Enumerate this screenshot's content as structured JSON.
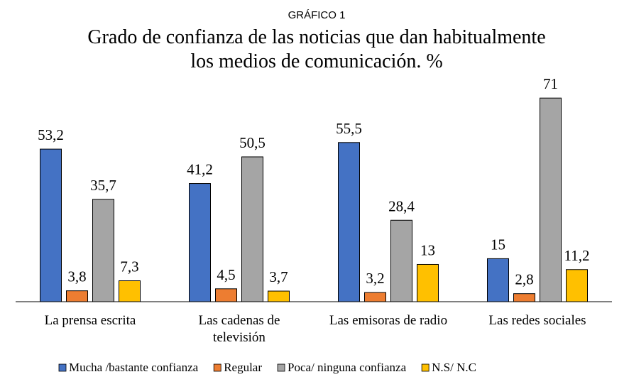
{
  "chart_data": {
    "type": "bar",
    "supertitle": "GRÁFICO 1",
    "title_lines": [
      "Grado de confianza  de las noticias que dan habitualmente",
      "los medios de comunicación. %"
    ],
    "categories": [
      [
        "La prensa escrita"
      ],
      [
        "Las cadenas de",
        "televisión"
      ],
      [
        "Las emisoras de radio"
      ],
      [
        "Las redes sociales"
      ]
    ],
    "series": [
      {
        "name": "Mucha /bastante confianza",
        "color": "#4472C4",
        "values": [
          53.2,
          41.2,
          55.5,
          15
        ]
      },
      {
        "name": "Regular",
        "color": "#ED7D31",
        "values": [
          3.8,
          4.5,
          3.2,
          2.8
        ]
      },
      {
        "name": "Poca/ ninguna confianza",
        "color": "#A5A5A5",
        "values": [
          35.7,
          50.5,
          28.4,
          71
        ]
      },
      {
        "name": "N.S/ N.C",
        "color": "#FFC000",
        "values": [
          7.3,
          3.7,
          13,
          11.2
        ]
      }
    ],
    "value_labels": [
      [
        "53,2",
        "41,2",
        "55,5",
        "15"
      ],
      [
        "3,8",
        "4,5",
        "3,2",
        "2,8"
      ],
      [
        "35,7",
        "50,5",
        "28,4",
        "71"
      ],
      [
        "7,3",
        "3,7",
        "13",
        "11,2"
      ]
    ],
    "ylim": [
      0,
      75
    ],
    "grid": false,
    "legend_position": "bottom"
  }
}
